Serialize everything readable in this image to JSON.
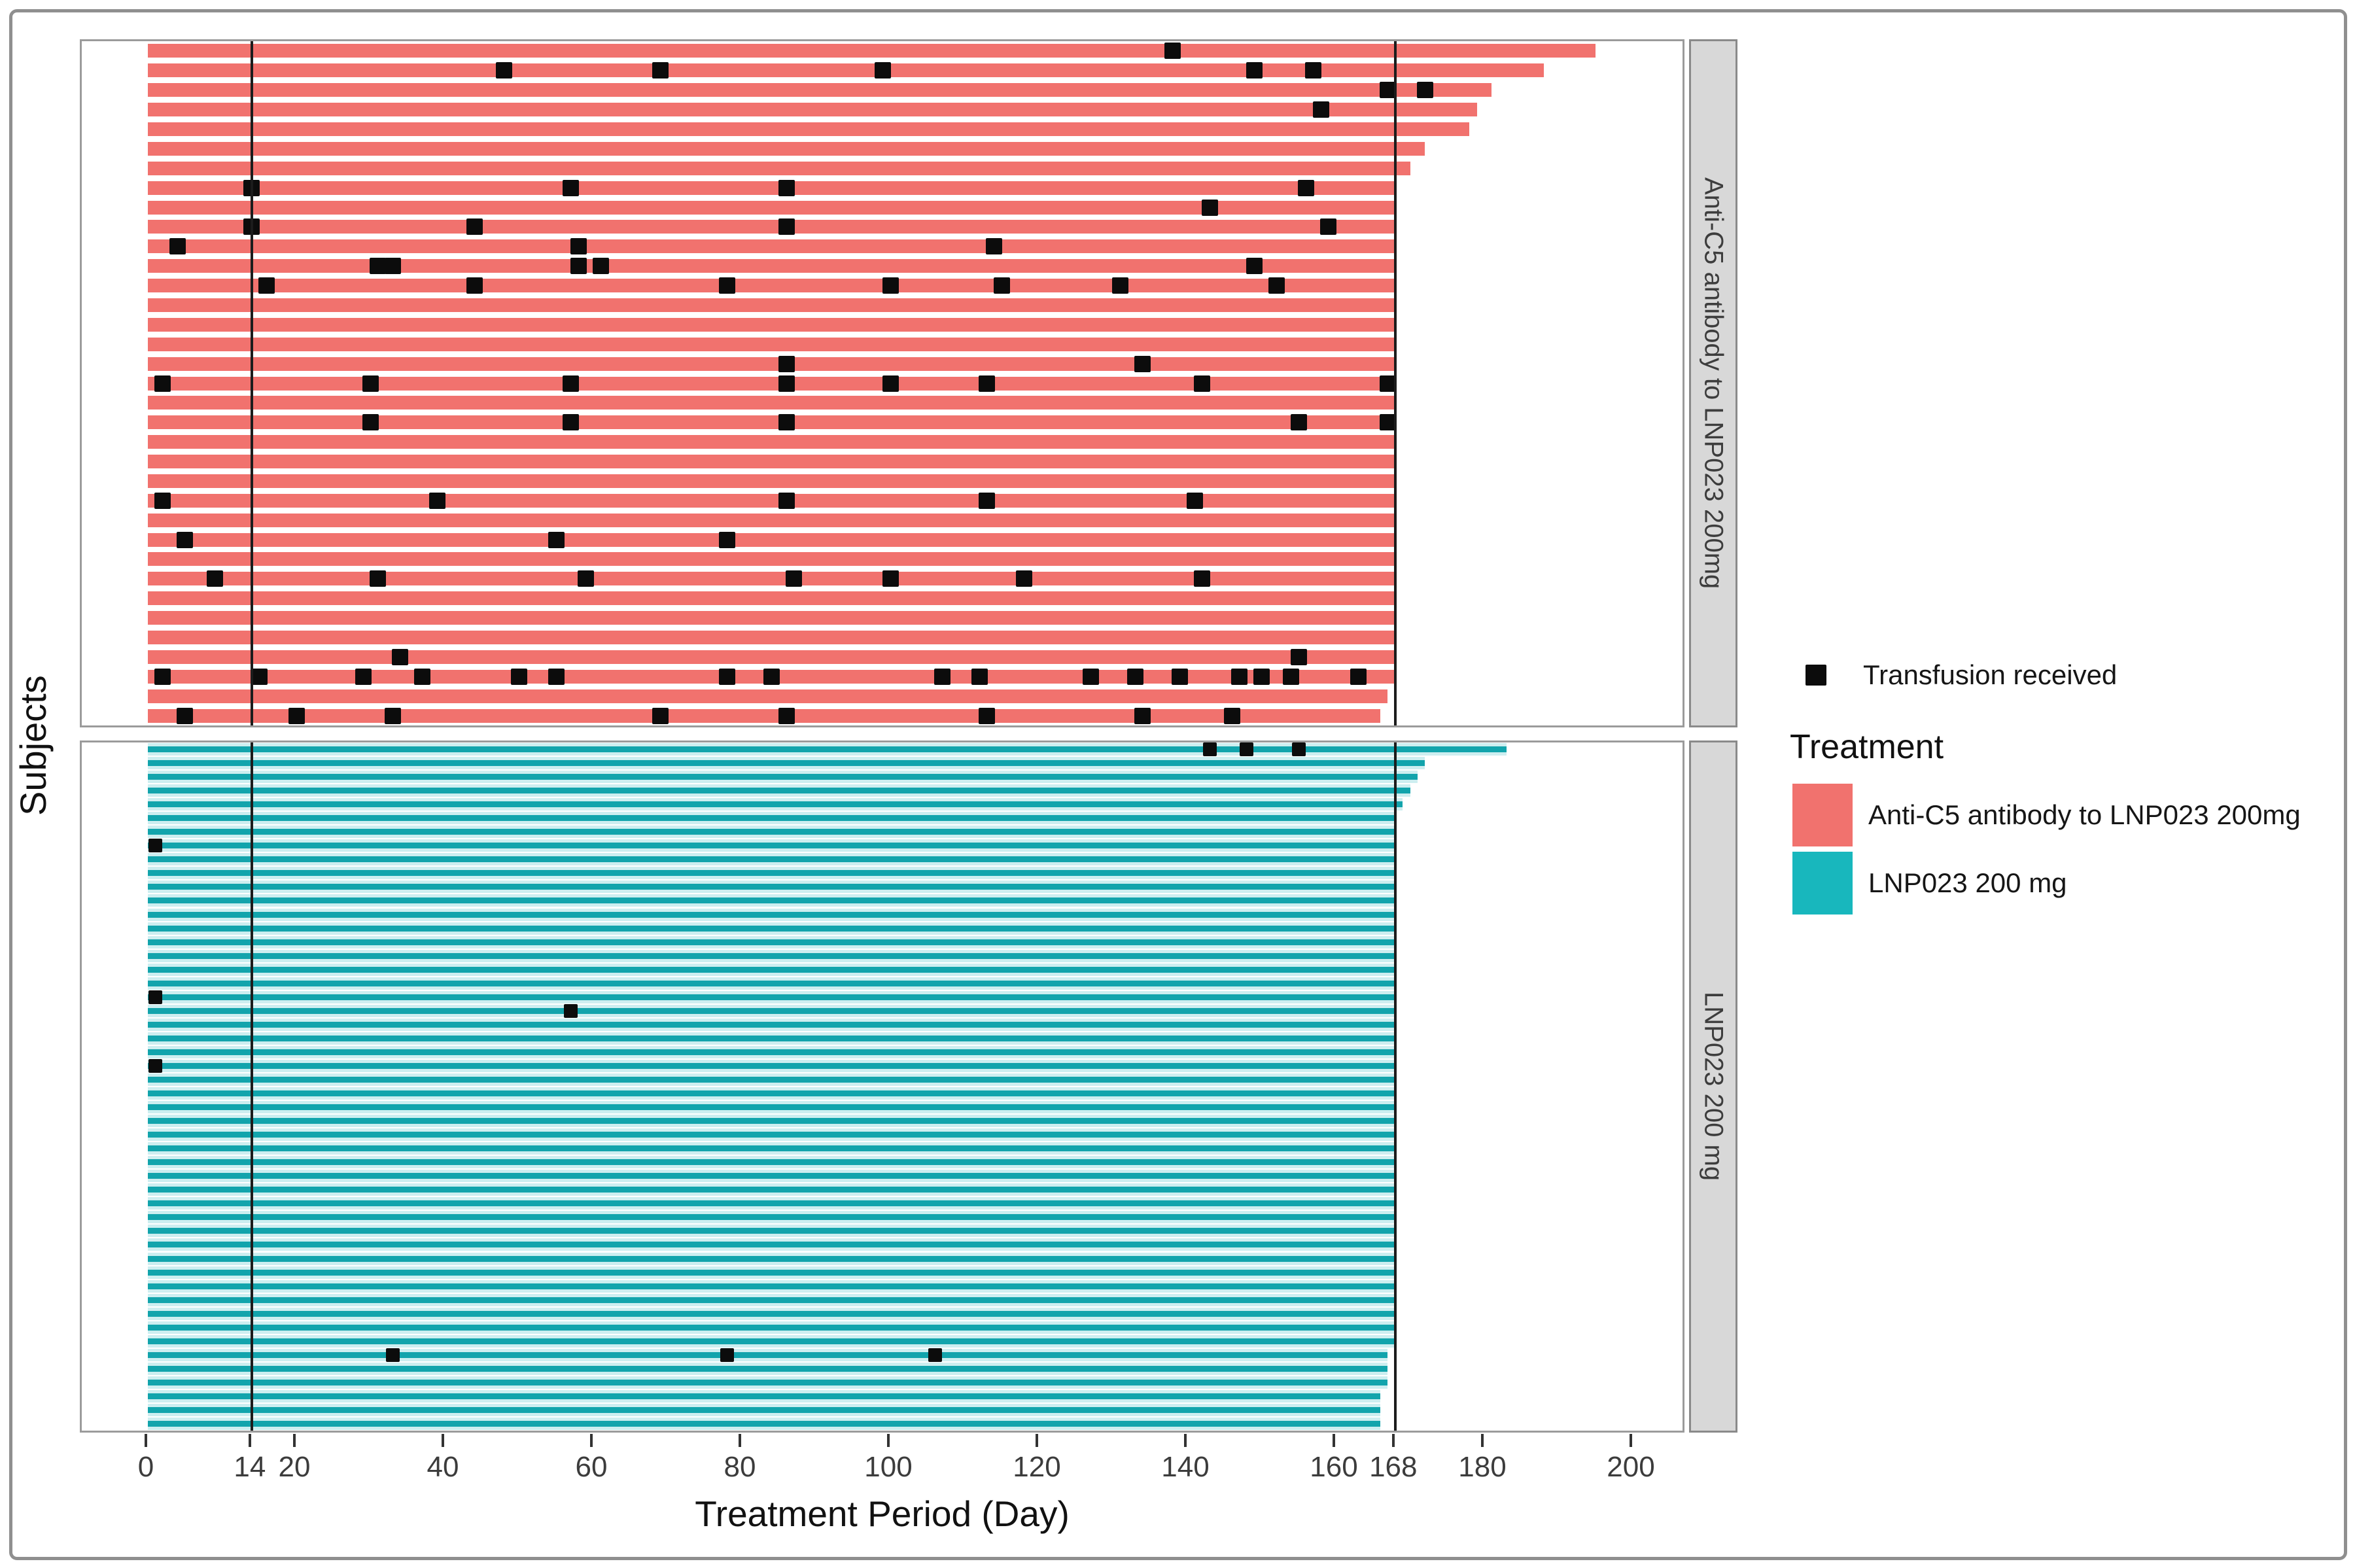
{
  "legend": {
    "transfusion_label": "Transfusion received",
    "marker_color": "#0c0c0c",
    "treatment_title": "Treatment",
    "entries": [
      {
        "label": "Anti-C5 antibody to LNP023 200mg",
        "color": "#f1726e"
      },
      {
        "label": "LNP023 200 mg",
        "color": "#18b7bd"
      }
    ]
  },
  "chart_data": {
    "type": "bar",
    "subtype": "horizontal-swimmer-plot",
    "xlabel": "Treatment Period (Day)",
    "ylabel": "Subjects",
    "x_ticks": [
      0,
      14,
      20,
      40,
      60,
      80,
      100,
      120,
      140,
      160,
      168,
      180,
      200
    ],
    "x_range": [
      -9,
      207
    ],
    "reference_lines": [
      14,
      168
    ],
    "grid": "off",
    "legend_position": "right",
    "marker_meaning": "Transfusion received",
    "panels": [
      {
        "label": "Anti-C5 antibody to LNP023 200mg",
        "color": "#f1726e",
        "underlay_color": null,
        "bars": [
          {
            "end": 195,
            "transfusions": [
              138
            ]
          },
          {
            "end": 188,
            "transfusions": [
              48,
              69,
              99,
              149,
              157
            ]
          },
          {
            "end": 181,
            "transfusions": [
              167,
              172
            ]
          },
          {
            "end": 179,
            "transfusions": [
              158
            ]
          },
          {
            "end": 178,
            "transfusions": []
          },
          {
            "end": 172,
            "transfusions": []
          },
          {
            "end": 170,
            "transfusions": []
          },
          {
            "end": 168,
            "transfusions": [
              14,
              57,
              86,
              156
            ]
          },
          {
            "end": 168,
            "transfusions": [
              143
            ]
          },
          {
            "end": 168,
            "transfusions": [
              14,
              44,
              86,
              159
            ]
          },
          {
            "end": 168,
            "transfusions": [
              4,
              58,
              114
            ]
          },
          {
            "end": 168,
            "transfusions": [
              31,
              33,
              58,
              61,
              149
            ]
          },
          {
            "end": 168,
            "transfusions": [
              16,
              44,
              78,
              100,
              115,
              131,
              152
            ]
          },
          {
            "end": 168,
            "transfusions": []
          },
          {
            "end": 168,
            "transfusions": []
          },
          {
            "end": 168,
            "transfusions": []
          },
          {
            "end": 168,
            "transfusions": [
              86,
              134
            ]
          },
          {
            "end": 168,
            "transfusions": [
              2,
              30,
              57,
              86,
              100,
              113,
              142,
              167
            ]
          },
          {
            "end": 168,
            "transfusions": []
          },
          {
            "end": 168,
            "transfusions": [
              30,
              57,
              86,
              155,
              167
            ]
          },
          {
            "end": 168,
            "transfusions": []
          },
          {
            "end": 168,
            "transfusions": []
          },
          {
            "end": 168,
            "transfusions": []
          },
          {
            "end": 168,
            "transfusions": [
              2,
              39,
              86,
              113,
              141
            ]
          },
          {
            "end": 168,
            "transfusions": []
          },
          {
            "end": 168,
            "transfusions": [
              5,
              55,
              78
            ]
          },
          {
            "end": 168,
            "transfusions": []
          },
          {
            "end": 168,
            "transfusions": [
              9,
              31,
              59,
              87,
              100,
              118,
              142
            ]
          },
          {
            "end": 168,
            "transfusions": []
          },
          {
            "end": 168,
            "transfusions": []
          },
          {
            "end": 168,
            "transfusions": []
          },
          {
            "end": 168,
            "transfusions": [
              34,
              155
            ]
          },
          {
            "end": 168,
            "transfusions": [
              2,
              15,
              29,
              37,
              50,
              55,
              78,
              84,
              107,
              112,
              127,
              133,
              139,
              147,
              150,
              154,
              163
            ]
          },
          {
            "end": 167,
            "transfusions": []
          },
          {
            "end": 166,
            "transfusions": [
              5,
              20,
              33,
              69,
              86,
              113,
              134,
              146
            ]
          }
        ]
      },
      {
        "label": "LNP023 200 mg",
        "color": "#12a4ac",
        "underlay_color": "#cdeef0",
        "bars": [
          {
            "end": 183,
            "transfusions": [
              143,
              148,
              155
            ]
          },
          {
            "end": 172,
            "transfusions": []
          },
          {
            "end": 171,
            "transfusions": []
          },
          {
            "end": 170,
            "transfusions": []
          },
          {
            "end": 169,
            "transfusions": []
          },
          {
            "end": 168,
            "transfusions": []
          },
          {
            "end": 168,
            "transfusions": []
          },
          {
            "end": 168,
            "transfusions": [
              1
            ]
          },
          {
            "end": 168,
            "transfusions": []
          },
          {
            "end": 168,
            "transfusions": []
          },
          {
            "end": 168,
            "transfusions": []
          },
          {
            "end": 168,
            "transfusions": []
          },
          {
            "end": 168,
            "transfusions": []
          },
          {
            "end": 168,
            "transfusions": []
          },
          {
            "end": 168,
            "transfusions": []
          },
          {
            "end": 168,
            "transfusions": []
          },
          {
            "end": 168,
            "transfusions": []
          },
          {
            "end": 168,
            "transfusions": []
          },
          {
            "end": 168,
            "transfusions": [
              1
            ]
          },
          {
            "end": 168,
            "transfusions": [
              57
            ]
          },
          {
            "end": 168,
            "transfusions": []
          },
          {
            "end": 168,
            "transfusions": []
          },
          {
            "end": 168,
            "transfusions": []
          },
          {
            "end": 168,
            "transfusions": [
              1
            ]
          },
          {
            "end": 168,
            "transfusions": []
          },
          {
            "end": 168,
            "transfusions": []
          },
          {
            "end": 168,
            "transfusions": []
          },
          {
            "end": 168,
            "transfusions": []
          },
          {
            "end": 168,
            "transfusions": []
          },
          {
            "end": 168,
            "transfusions": []
          },
          {
            "end": 168,
            "transfusions": []
          },
          {
            "end": 168,
            "transfusions": []
          },
          {
            "end": 168,
            "transfusions": []
          },
          {
            "end": 168,
            "transfusions": []
          },
          {
            "end": 168,
            "transfusions": []
          },
          {
            "end": 168,
            "transfusions": []
          },
          {
            "end": 168,
            "transfusions": []
          },
          {
            "end": 168,
            "transfusions": []
          },
          {
            "end": 168,
            "transfusions": []
          },
          {
            "end": 168,
            "transfusions": []
          },
          {
            "end": 168,
            "transfusions": []
          },
          {
            "end": 168,
            "transfusions": []
          },
          {
            "end": 168,
            "transfusions": []
          },
          {
            "end": 168,
            "transfusions": []
          },
          {
            "end": 167,
            "transfusions": [
              33,
              78,
              106
            ]
          },
          {
            "end": 167,
            "transfusions": []
          },
          {
            "end": 167,
            "transfusions": []
          },
          {
            "end": 166,
            "transfusions": []
          },
          {
            "end": 166,
            "transfusions": []
          },
          {
            "end": 166,
            "transfusions": []
          }
        ]
      }
    ]
  }
}
